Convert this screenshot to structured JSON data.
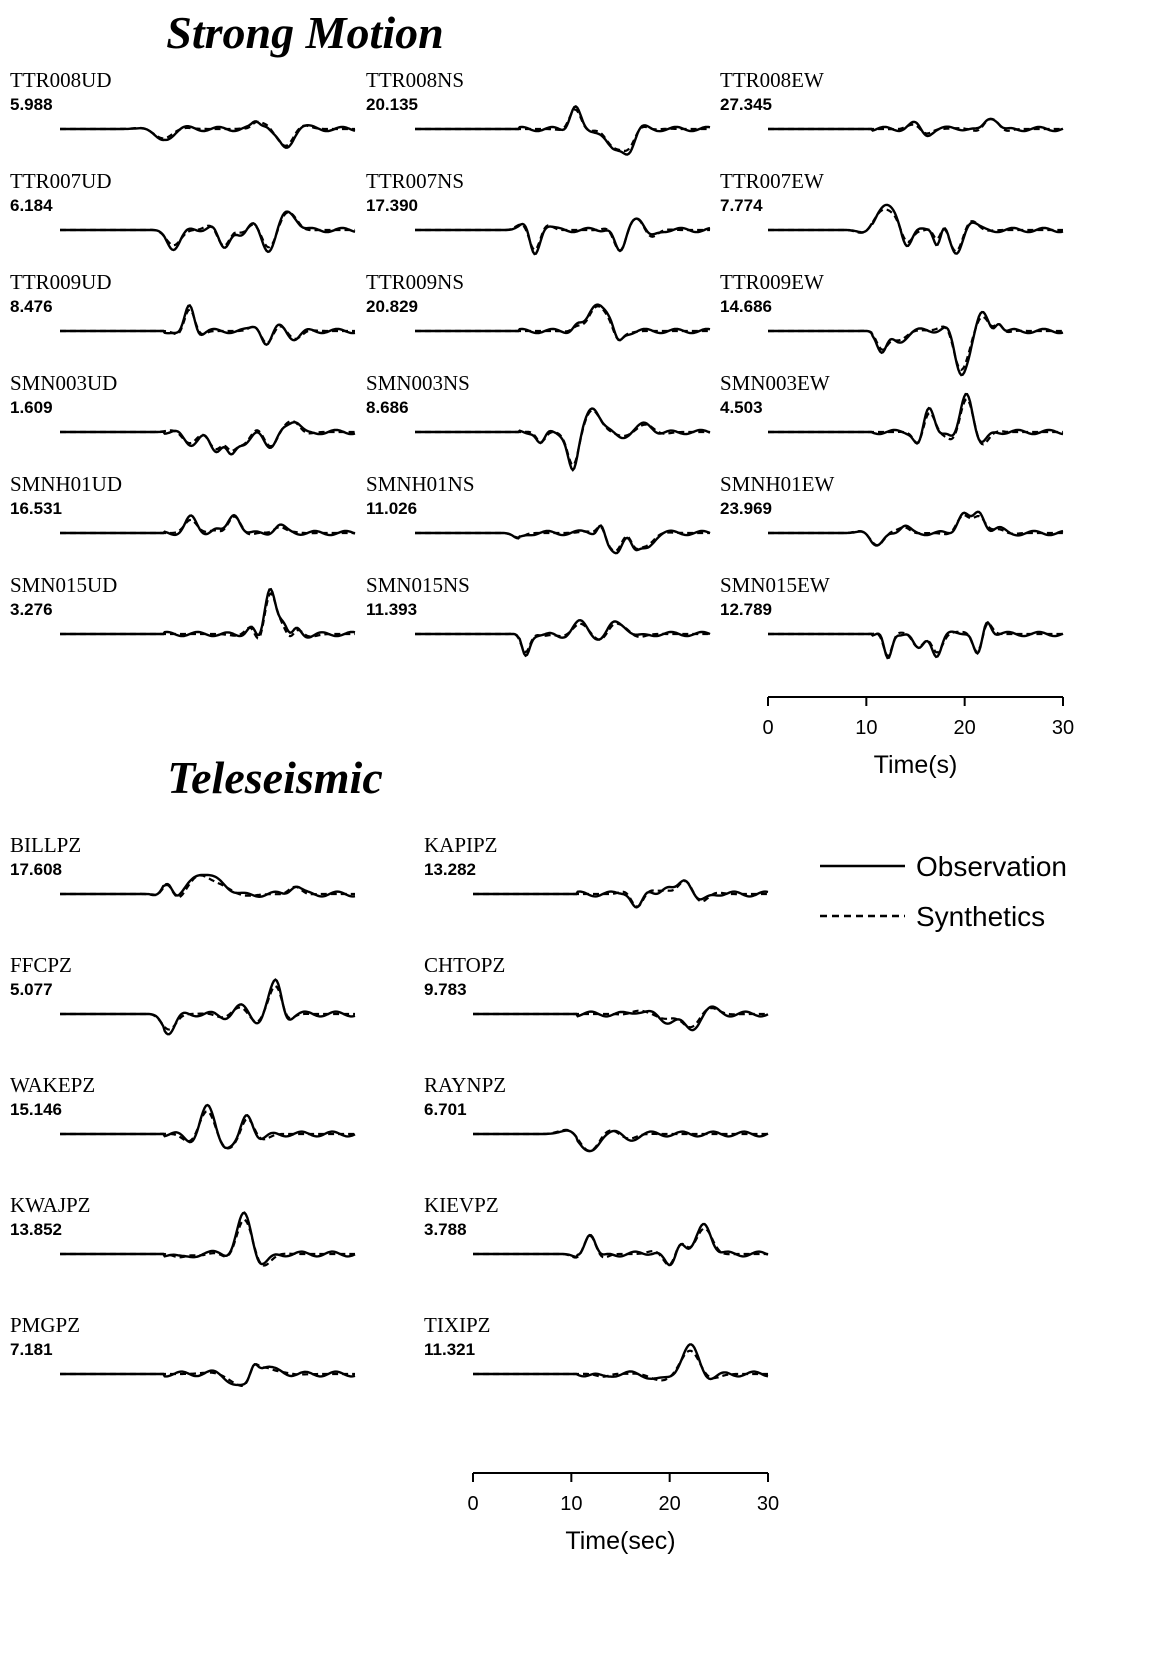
{
  "strong_motion": {
    "title": "Strong Motion",
    "stations": [
      {
        "name": "TTR008UD",
        "amplitude": "5.988"
      },
      {
        "name": "TTR008NS",
        "amplitude": "20.135"
      },
      {
        "name": "TTR008EW",
        "amplitude": "27.345"
      },
      {
        "name": "TTR007UD",
        "amplitude": "6.184"
      },
      {
        "name": "TTR007NS",
        "amplitude": "17.390"
      },
      {
        "name": "TTR007EW",
        "amplitude": "7.774"
      },
      {
        "name": "TTR009UD",
        "amplitude": "8.476"
      },
      {
        "name": "TTR009NS",
        "amplitude": "20.829"
      },
      {
        "name": "TTR009EW",
        "amplitude": "14.686"
      },
      {
        "name": "SMN003UD",
        "amplitude": "1.609"
      },
      {
        "name": "SMN003NS",
        "amplitude": "8.686"
      },
      {
        "name": "SMN003EW",
        "amplitude": "4.503"
      },
      {
        "name": "SMNH01UD",
        "amplitude": "16.531"
      },
      {
        "name": "SMNH01NS",
        "amplitude": "11.026"
      },
      {
        "name": "SMNH01EW",
        "amplitude": "23.969"
      },
      {
        "name": "SMN015UD",
        "amplitude": "3.276"
      },
      {
        "name": "SMN015NS",
        "amplitude": "11.393"
      },
      {
        "name": "SMN015EW",
        "amplitude": "12.789"
      }
    ],
    "axis": {
      "xlim": [
        0,
        30
      ],
      "xticks": [
        0,
        10,
        20,
        30
      ],
      "label": "Time(s)"
    }
  },
  "teleseismic": {
    "title": "Teleseismic",
    "stations": [
      {
        "name": "BILLPZ",
        "amplitude": "17.608"
      },
      {
        "name": "KAPIPZ",
        "amplitude": "13.282"
      },
      {
        "name": "FFCPZ",
        "amplitude": "5.077"
      },
      {
        "name": "CHTOPZ",
        "amplitude": "9.783"
      },
      {
        "name": "WAKEPZ",
        "amplitude": "15.146"
      },
      {
        "name": "RAYNPZ",
        "amplitude": "6.701"
      },
      {
        "name": "KWAJPZ",
        "amplitude": "13.852"
      },
      {
        "name": "KIEVPZ",
        "amplitude": "3.788"
      },
      {
        "name": "PMGPZ",
        "amplitude": "7.181"
      },
      {
        "name": "TIXIPZ",
        "amplitude": "11.321"
      }
    ],
    "axis": {
      "xlim": [
        0,
        30
      ],
      "xticks": [
        0,
        10,
        20,
        30
      ],
      "label": "Time(sec)"
    }
  },
  "legend": [
    "Observation",
    "Synthetics"
  ]
}
